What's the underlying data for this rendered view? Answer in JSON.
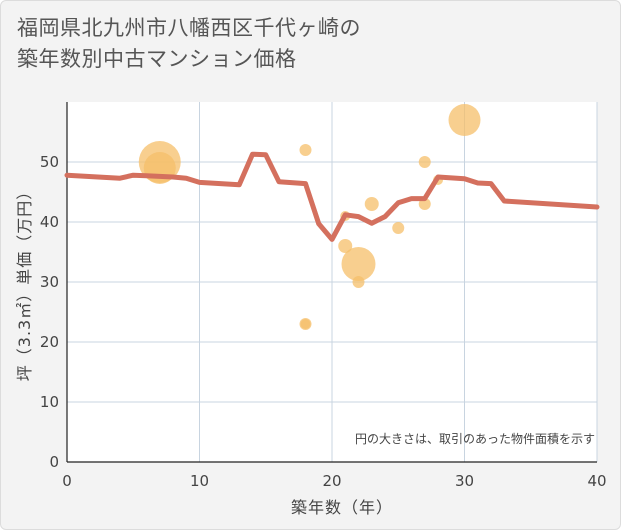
{
  "title_line1": "福岡県北九州市八幡西区千代ヶ崎の",
  "title_line2": "築年数別中古マンション価格",
  "chart_data": {
    "type": "scatter",
    "title": "福岡県北九州市八幡西区千代ヶ崎の築年数別中古マンション価格",
    "xlabel": "築年数（年）",
    "ylabel": "坪（3.3㎡）単価（万円）",
    "xlim": [
      0,
      40
    ],
    "ylim": [
      0,
      60
    ],
    "xticks": [
      0,
      10,
      20,
      30,
      40
    ],
    "yticks": [
      0,
      10,
      20,
      30,
      40,
      50
    ],
    "annotation": "円の大きさは、取引のあった物件面積を示す",
    "scatter_color": "#f5bf6a",
    "line_color": "#d4705e",
    "points": [
      {
        "x": 7,
        "y": 50,
        "size": 21
      },
      {
        "x": 7,
        "y": 49,
        "size": 16
      },
      {
        "x": 18,
        "y": 52,
        "size": 6
      },
      {
        "x": 18,
        "y": 23,
        "size": 6
      },
      {
        "x": 18,
        "y": 23,
        "size": 5
      },
      {
        "x": 21,
        "y": 41,
        "size": 5
      },
      {
        "x": 21,
        "y": 36,
        "size": 7
      },
      {
        "x": 22,
        "y": 33,
        "size": 17
      },
      {
        "x": 22,
        "y": 30,
        "size": 6
      },
      {
        "x": 23,
        "y": 43,
        "size": 7
      },
      {
        "x": 25,
        "y": 39,
        "size": 6
      },
      {
        "x": 27,
        "y": 50,
        "size": 6
      },
      {
        "x": 27,
        "y": 43,
        "size": 6
      },
      {
        "x": 28,
        "y": 47,
        "size": 5
      },
      {
        "x": 30,
        "y": 57,
        "size": 16
      }
    ],
    "line": {
      "x": [
        0,
        4,
        5,
        6,
        7,
        8,
        9,
        10,
        13,
        14,
        15,
        16,
        18,
        19,
        20,
        21,
        22,
        23,
        24,
        25,
        26,
        27,
        28,
        30,
        31,
        32,
        33,
        40
      ],
      "y": [
        47.8,
        47.3,
        47.8,
        47.7,
        47.6,
        47.5,
        47.3,
        46.6,
        46.2,
        51.3,
        51.2,
        46.7,
        46.4,
        39.7,
        37.1,
        41.2,
        40.9,
        39.8,
        40.9,
        43.2,
        43.9,
        43.9,
        47.5,
        47.2,
        46.5,
        46.4,
        43.5,
        42.5
      ]
    }
  }
}
